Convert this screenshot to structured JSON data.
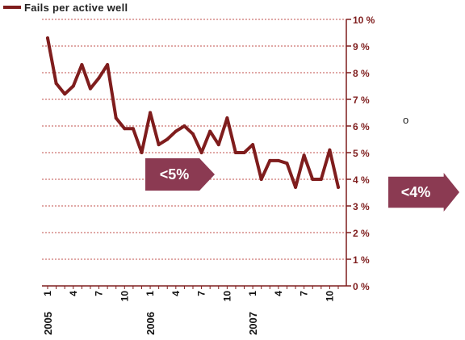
{
  "legend": {
    "label": "Fails per active well",
    "color": "#7f1d1d"
  },
  "annotations": {
    "target_a": "<5%",
    "target_b": "<4%",
    "marker": "o"
  },
  "colors": {
    "line": "#7f1d1d",
    "grid": "#c0504d",
    "axis": "#7f1d1d",
    "callout": "#8b3a52"
  },
  "chart_data": {
    "type": "line",
    "series": [
      {
        "name": "Fails per active well",
        "values": [
          9.3,
          7.6,
          7.2,
          7.5,
          8.3,
          7.4,
          7.8,
          8.3,
          6.3,
          5.9,
          5.9,
          5.0,
          6.5,
          5.3,
          5.5,
          5.8,
          6.0,
          5.7,
          5.0,
          5.8,
          5.3,
          6.3,
          5.0,
          5.0,
          5.3,
          4.0,
          4.7,
          4.7,
          4.6,
          3.7,
          4.9,
          4.0,
          4.0,
          5.1,
          3.7
        ]
      }
    ],
    "x_tick_labels": [
      "1",
      "4",
      "7",
      "10",
      "1",
      "4",
      "7",
      "10",
      "1",
      "4",
      "7",
      "10"
    ],
    "year_labels": [
      "2005",
      "2006",
      "2007"
    ],
    "y_tick_labels": [
      "0 %",
      "1 %",
      "2 %",
      "3 %",
      "4 %",
      "5 %",
      "6 %",
      "7 %",
      "8 %",
      "9 %",
      "10 %"
    ],
    "ylim": [
      0,
      10
    ],
    "grid": true,
    "legend_position": "top-left"
  }
}
